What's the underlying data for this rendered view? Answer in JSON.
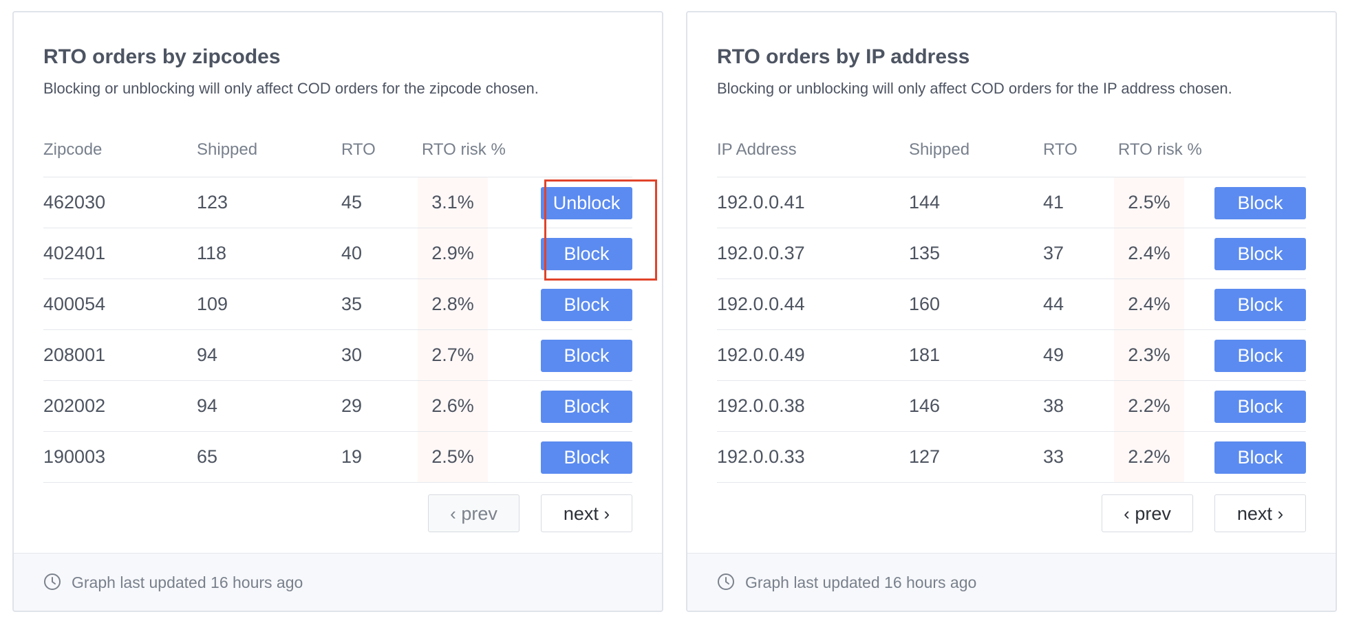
{
  "zip_panel": {
    "title": "RTO orders by zipcodes",
    "subtitle": "Blocking or unblocking will only affect COD orders for the zipcode chosen.",
    "headers": [
      "Zipcode",
      "Shipped",
      "RTO",
      "RTO risk %"
    ],
    "rows": [
      {
        "key": "462030",
        "shipped": "123",
        "rto": "45",
        "risk": "3.1%",
        "action": "Unblock"
      },
      {
        "key": "402401",
        "shipped": "118",
        "rto": "40",
        "risk": "2.9%",
        "action": "Block"
      },
      {
        "key": "400054",
        "shipped": "109",
        "rto": "35",
        "risk": "2.8%",
        "action": "Block"
      },
      {
        "key": "208001",
        "shipped": "94",
        "rto": "30",
        "risk": "2.7%",
        "action": "Block"
      },
      {
        "key": "202002",
        "shipped": "94",
        "rto": "29",
        "risk": "2.6%",
        "action": "Block"
      },
      {
        "key": "190003",
        "shipped": "65",
        "rto": "19",
        "risk": "2.5%",
        "action": "Block"
      }
    ],
    "prev_label": "prev",
    "next_label": "next",
    "prev_disabled": true,
    "footer": "Graph last updated 16 hours ago"
  },
  "ip_panel": {
    "title": "RTO orders by IP address",
    "subtitle": "Blocking or unblocking will only affect COD orders for the IP address chosen.",
    "headers": [
      "IP Address",
      "Shipped",
      "RTO",
      "RTO risk %"
    ],
    "rows": [
      {
        "key": "192.0.0.41",
        "shipped": "144",
        "rto": "41",
        "risk": "2.5%",
        "action": "Block"
      },
      {
        "key": "192.0.0.37",
        "shipped": "135",
        "rto": "37",
        "risk": "2.4%",
        "action": "Block"
      },
      {
        "key": "192.0.0.44",
        "shipped": "160",
        "rto": "44",
        "risk": "2.4%",
        "action": "Block"
      },
      {
        "key": "192.0.0.49",
        "shipped": "181",
        "rto": "49",
        "risk": "2.3%",
        "action": "Block"
      },
      {
        "key": "192.0.0.38",
        "shipped": "146",
        "rto": "38",
        "risk": "2.2%",
        "action": "Block"
      },
      {
        "key": "192.0.0.33",
        "shipped": "127",
        "rto": "33",
        "risk": "2.2%",
        "action": "Block"
      }
    ],
    "prev_label": "prev",
    "next_label": "next",
    "prev_disabled": false,
    "footer": "Graph last updated 16 hours ago"
  },
  "colors": {
    "button_primary": "#5b8bf0",
    "highlight_border": "#e0432a",
    "risk_cell_bg": "#fff8f7"
  },
  "icons": [
    "clock-icon",
    "chevron-left-icon",
    "chevron-right-icon"
  ]
}
